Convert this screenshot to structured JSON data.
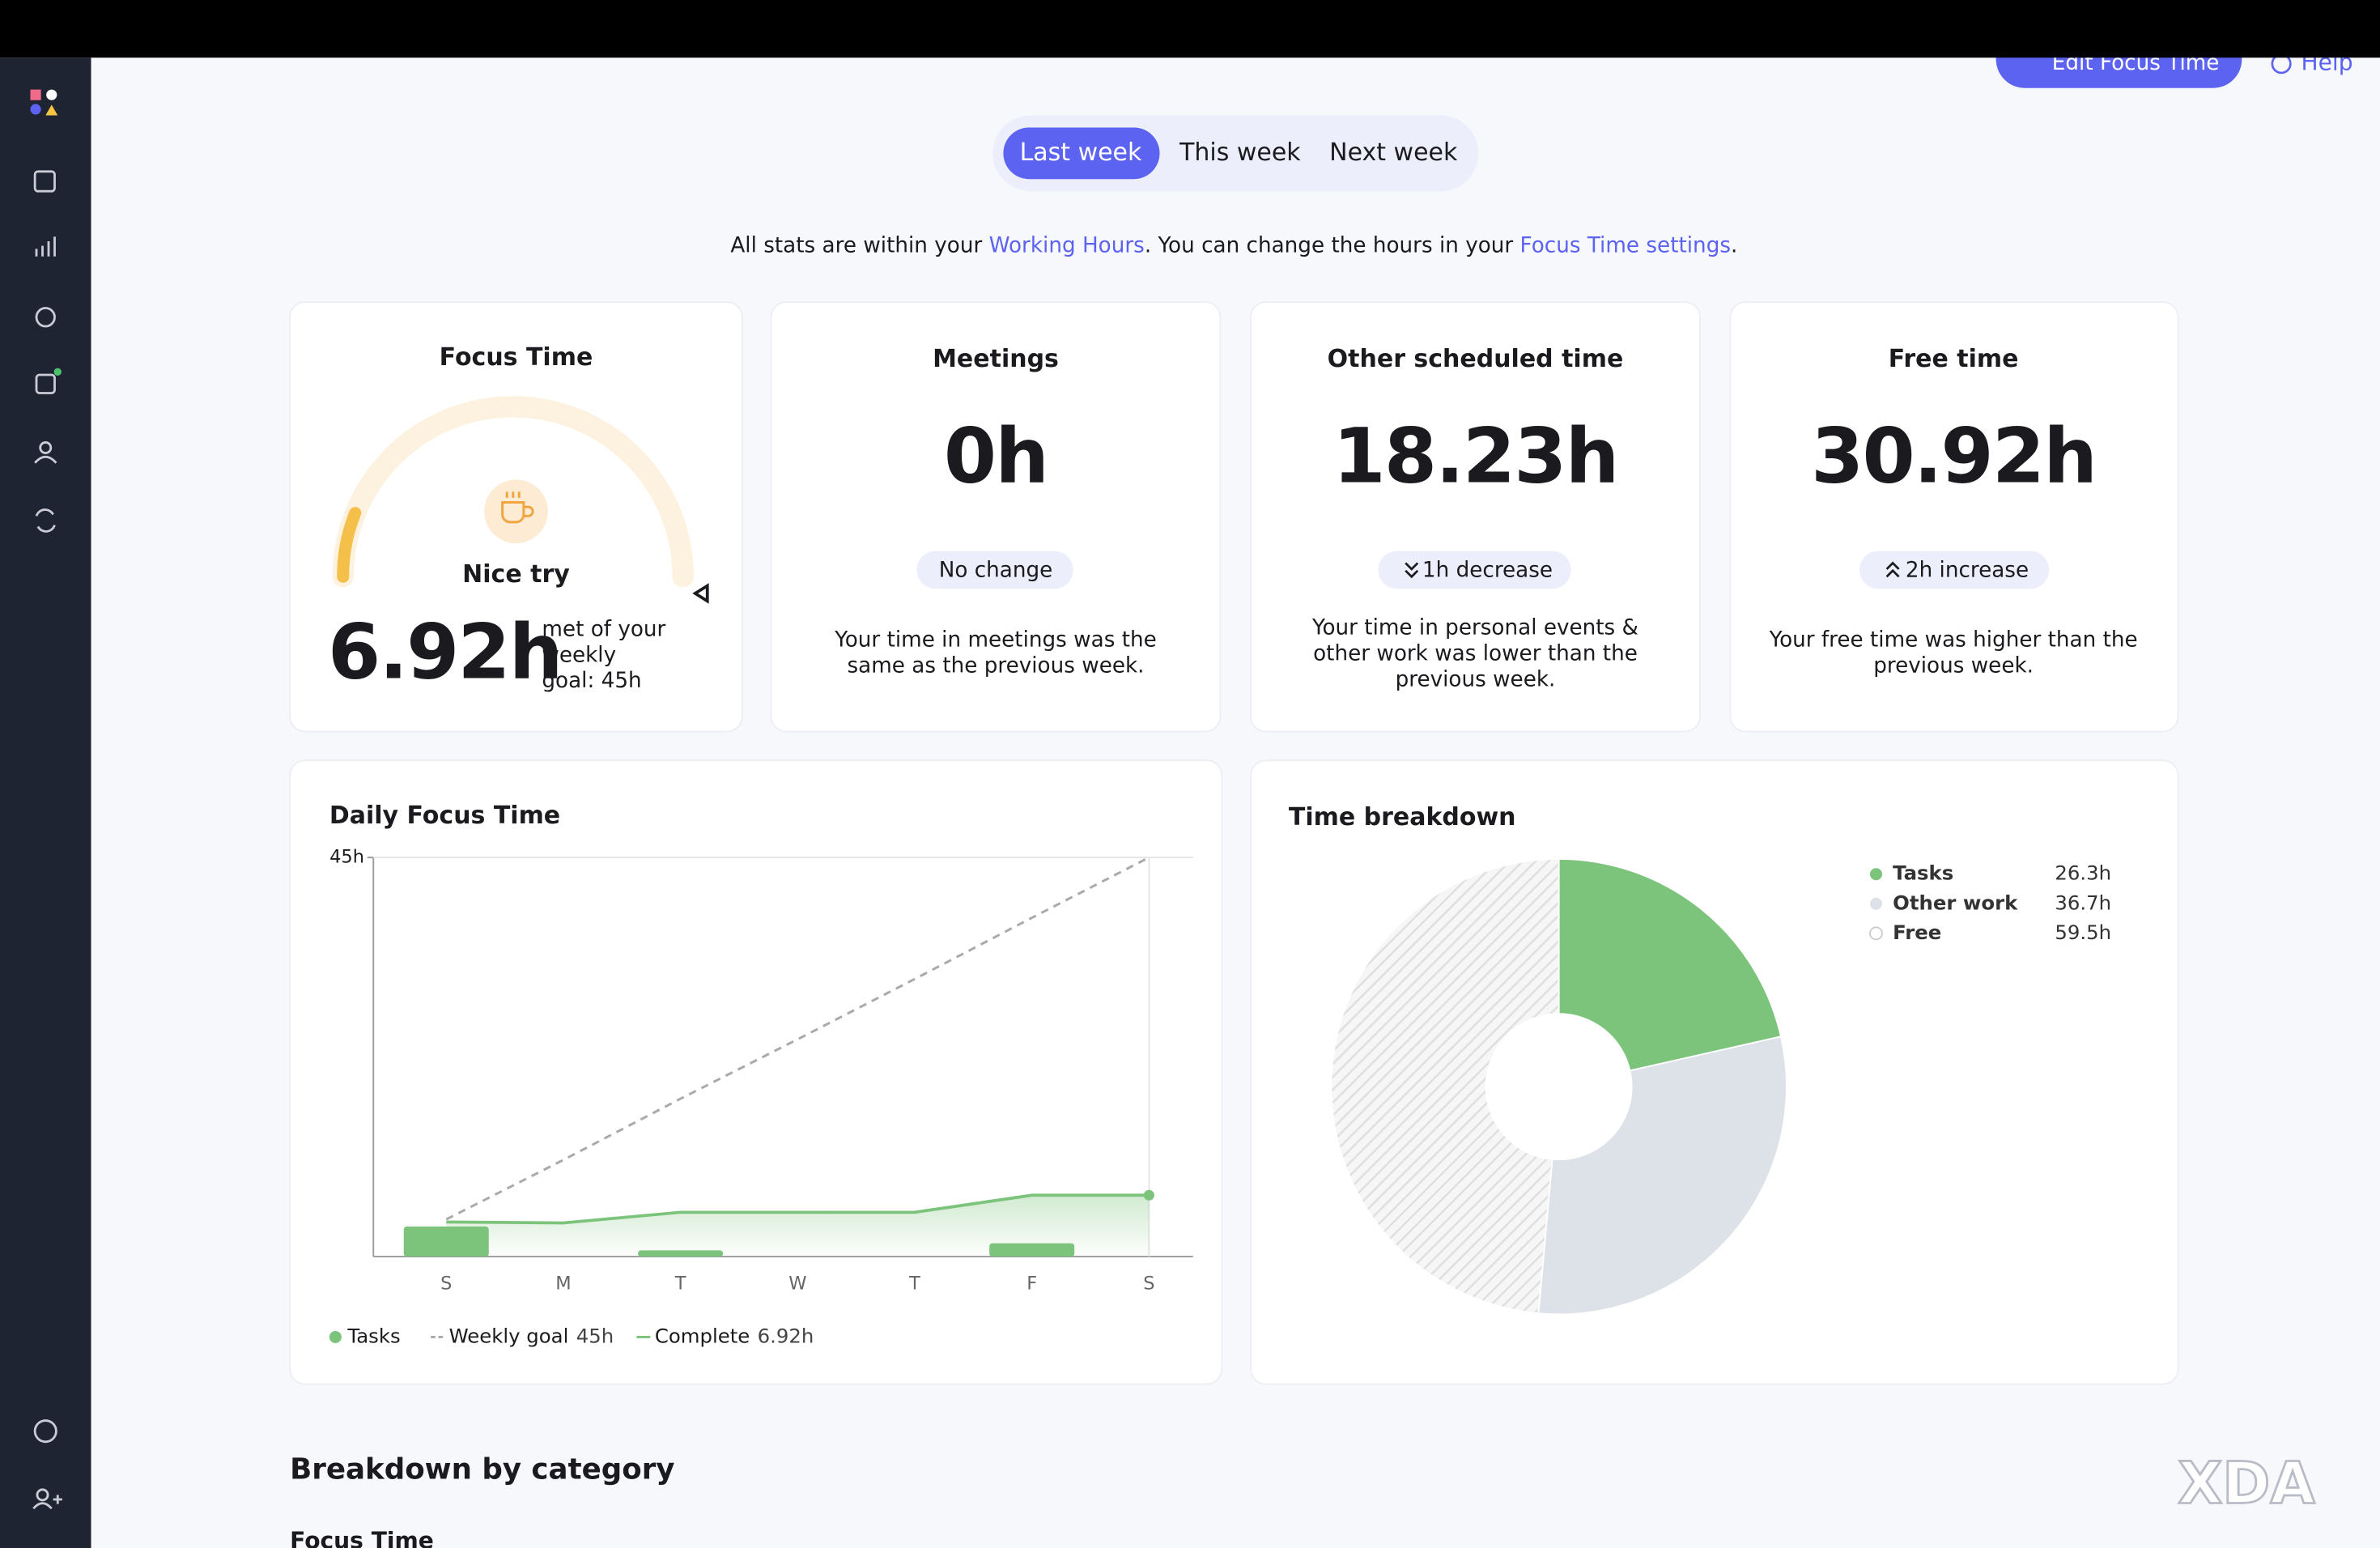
{
  "top_actions": [
    "Edit Focus Time",
    "Help"
  ],
  "tabs": [
    "Last week",
    "This week",
    "Next week"
  ],
  "notice": [
    "All stats are within your ",
    "Working Hours",
    ". You can change the hours in your ",
    "Focus Time settings",
    "."
  ],
  "cards": [
    {
      "title": "Focus Time",
      "badge": "Nice try",
      "value": "6.92h",
      "note": [
        "met of your",
        "weekly",
        "goal: 45h"
      ]
    },
    {
      "title": "Meetings",
      "value": "0h",
      "badge": "No change",
      "note": [
        "Your time in meetings was the",
        "same as the previous week."
      ]
    },
    {
      "title": "Other scheduled time",
      "value": "18.23h",
      "badge": "1h decrease",
      "note": [
        "Your time in personal events &",
        "other work was lower than the",
        "previous week."
      ]
    },
    {
      "title": "Free time",
      "value": "30.92h",
      "badge": "2h increase",
      "note": [
        "Your free time was higher than the",
        "previous week."
      ]
    }
  ],
  "chart_data": [
    {
      "type": "bar",
      "title": "Daily Focus Time",
      "categories": [
        "S",
        "M",
        "T",
        "W",
        "T",
        "F",
        "S"
      ],
      "ylim": [
        0,
        45
      ],
      "yticks": [
        {
          "value": 45,
          "label": "45h"
        }
      ],
      "series": [
        {
          "name": "Tasks",
          "type": "bar",
          "color": "#7cc47c",
          "values": [
            3.4,
            0,
            0.7,
            0,
            0,
            1.5,
            0
          ]
        },
        {
          "name": "Weekly goal",
          "type": "line",
          "dashed": true,
          "color": "#aaaaaa",
          "values": [
            4.2,
            10.9,
            17.8,
            24.5,
            31.3,
            38.2,
            45
          ],
          "legend_value": "45h"
        },
        {
          "name": "Complete",
          "type": "area",
          "color": "#7cc47c",
          "values": [
            3.9,
            3.8,
            5.0,
            5.0,
            5.0,
            6.92,
            6.92
          ],
          "legend_value": "6.92h"
        }
      ]
    },
    {
      "type": "pie",
      "title": "Time breakdown",
      "categories": [
        "Tasks",
        "Other work",
        "Free"
      ],
      "values": [
        26.3,
        36.7,
        59.5
      ],
      "value_labels": [
        "26.3h",
        "36.7h",
        "59.5h"
      ],
      "colors": [
        "#7cc47c",
        "#dde1e8",
        "#e2e2e2"
      ],
      "hatched": [
        false,
        false,
        true
      ]
    }
  ],
  "section_title": "Breakdown by category",
  "subsection_title": "Focus Time"
}
